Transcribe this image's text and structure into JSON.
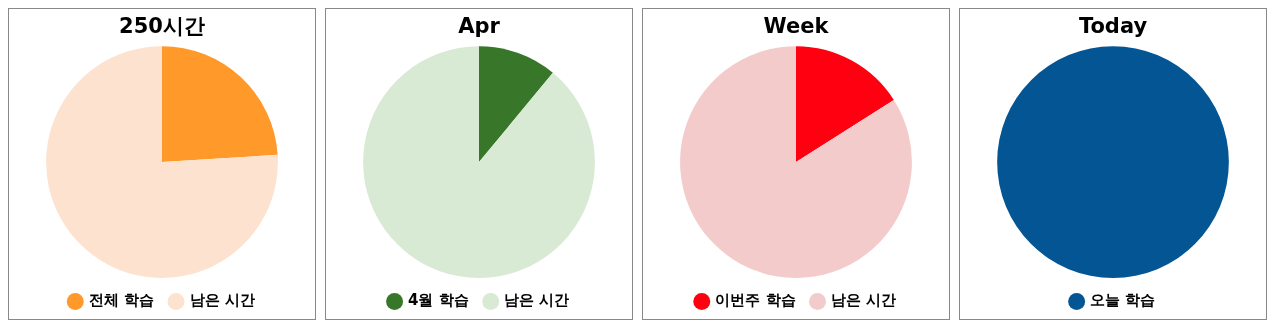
{
  "chart_data": [
    {
      "type": "pie",
      "title": "250시간",
      "categories": [
        "전체 학습",
        "남은 시간"
      ],
      "values": [
        24,
        76
      ],
      "colors": [
        "#ff9a2a",
        "#fde3cf"
      ],
      "legend": "bottom"
    },
    {
      "type": "pie",
      "title": "Apr",
      "categories": [
        "4월 학습",
        "남은 시간"
      ],
      "values": [
        11,
        89
      ],
      "colors": [
        "#38762a",
        "#d8e9d4"
      ],
      "legend": "bottom"
    },
    {
      "type": "pie",
      "title": "Week",
      "categories": [
        "이번주 학습",
        "남은 시간"
      ],
      "values": [
        16,
        84
      ],
      "colors": [
        "#ff0011",
        "#f4cbcb"
      ],
      "legend": "bottom"
    },
    {
      "type": "pie",
      "title": "Today",
      "categories": [
        "오늘 학습"
      ],
      "values": [
        100
      ],
      "colors": [
        "#045594"
      ],
      "legend": "bottom"
    }
  ]
}
